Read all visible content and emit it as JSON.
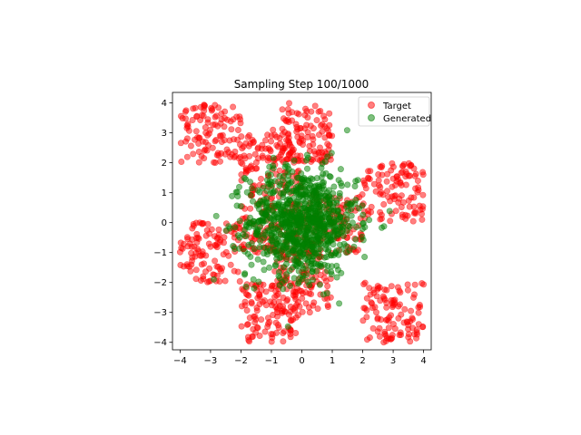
{
  "chart_data": {
    "type": "scatter",
    "title": "Sampling Step 100/1000",
    "xlabel": "",
    "ylabel": "",
    "xlim": [
      -4.25,
      4.25
    ],
    "ylim": [
      -4.25,
      4.35
    ],
    "xticks": [
      "−4",
      "−3",
      "−2",
      "−1",
      "0",
      "1",
      "2",
      "3",
      "4"
    ],
    "yticks": [
      "−4",
      "−3",
      "−2",
      "−1",
      "0",
      "1",
      "2",
      "3",
      "4"
    ],
    "grid": false,
    "legend_position": "top-right",
    "series": [
      {
        "name": "Target",
        "color": "#ff0000",
        "alpha": 0.5,
        "clusters": [
          {
            "center": [
              -3.0,
              3.0
            ],
            "half_width": 1.0
          },
          {
            "center": [
              0.0,
              3.0
            ],
            "half_width": 1.0
          },
          {
            "center": [
              3.0,
              1.0
            ],
            "half_width": 1.0
          },
          {
            "center": [
              -3.0,
              -1.0
            ],
            "half_width": 1.0
          },
          {
            "center": [
              -1.0,
              0.0
            ],
            "half_width": 1.0
          },
          {
            "center": [
              1.0,
              0.0
            ],
            "half_width": 1.0
          },
          {
            "center": [
              0.0,
              -2.0
            ],
            "half_width": 1.0
          },
          {
            "center": [
              3.0,
              -3.0
            ],
            "half_width": 1.0
          },
          {
            "center": [
              -1.0,
              -3.0
            ],
            "half_width": 1.0
          },
          {
            "center": [
              -1.0,
              2.0
            ],
            "half_width": 1.0
          }
        ],
        "points_per_cluster": 110
      },
      {
        "name": "Generated",
        "color": "#008000",
        "alpha": 0.5,
        "distribution": "gaussian",
        "center": [
          0.0,
          0.0
        ],
        "std": [
          0.9,
          0.9
        ],
        "n_points": 900
      }
    ]
  }
}
